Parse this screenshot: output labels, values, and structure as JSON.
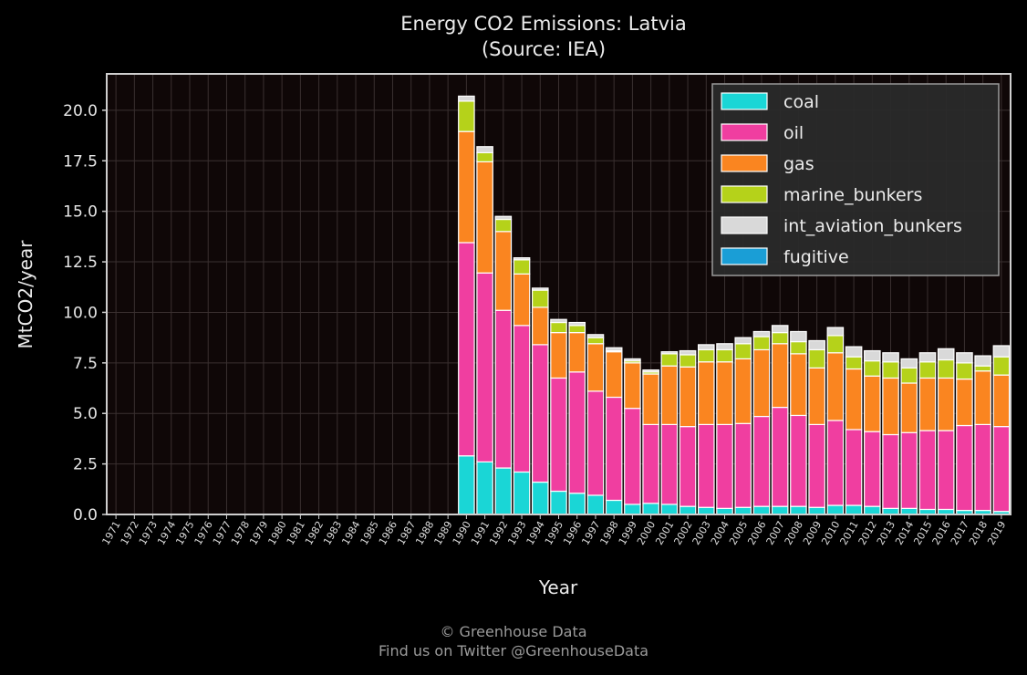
{
  "chart_data": {
    "type": "bar",
    "stacked": true,
    "title": "Energy CO2 Emissions: Latvia",
    "subtitle": "(Source: IEA)",
    "xlabel": "Year",
    "ylabel": "MtCO2/year",
    "ylim": [
      0,
      21.8
    ],
    "yticks": [
      "0.0",
      "2.5",
      "5.0",
      "7.5",
      "10.0",
      "12.5",
      "15.0",
      "17.5",
      "20.0"
    ],
    "grid": true,
    "legend_position": "top-right",
    "categories": [
      "1971",
      "1972",
      "1973",
      "1974",
      "1975",
      "1976",
      "1977",
      "1978",
      "1979",
      "1980",
      "1981",
      "1982",
      "1983",
      "1984",
      "1985",
      "1986",
      "1987",
      "1988",
      "1989",
      "1990",
      "1991",
      "1992",
      "1993",
      "1994",
      "1995",
      "1996",
      "1997",
      "1998",
      "1999",
      "2000",
      "2001",
      "2002",
      "2003",
      "2004",
      "2005",
      "2006",
      "2007",
      "2008",
      "2009",
      "2010",
      "2011",
      "2012",
      "2013",
      "2014",
      "2015",
      "2016",
      "2017",
      "2018",
      "2019"
    ],
    "series": [
      {
        "name": "coal",
        "color": "#1ad6d6",
        "values": [
          0,
          0,
          0,
          0,
          0,
          0,
          0,
          0,
          0,
          0,
          0,
          0,
          0,
          0,
          0,
          0,
          0,
          0,
          0,
          2.9,
          2.6,
          2.3,
          2.1,
          1.6,
          1.15,
          1.05,
          0.95,
          0.7,
          0.5,
          0.55,
          0.5,
          0.4,
          0.35,
          0.3,
          0.35,
          0.4,
          0.4,
          0.4,
          0.35,
          0.45,
          0.45,
          0.4,
          0.3,
          0.3,
          0.25,
          0.25,
          0.2,
          0.2,
          0.15
        ]
      },
      {
        "name": "oil",
        "color": "#f03ea0",
        "values": [
          0,
          0,
          0,
          0,
          0,
          0,
          0,
          0,
          0,
          0,
          0,
          0,
          0,
          0,
          0,
          0,
          0,
          0,
          0,
          10.55,
          9.35,
          7.8,
          7.25,
          6.8,
          5.6,
          6.0,
          5.15,
          5.1,
          4.75,
          3.9,
          3.95,
          3.95,
          4.1,
          4.15,
          4.15,
          4.45,
          4.9,
          4.5,
          4.1,
          4.2,
          3.75,
          3.7,
          3.65,
          3.75,
          3.9,
          3.9,
          4.2,
          4.25,
          4.2
        ]
      },
      {
        "name": "gas",
        "color": "#fa8520",
        "values": [
          0,
          0,
          0,
          0,
          0,
          0,
          0,
          0,
          0,
          0,
          0,
          0,
          0,
          0,
          0,
          0,
          0,
          0,
          0,
          5.5,
          5.5,
          3.9,
          2.55,
          1.85,
          2.25,
          1.95,
          2.35,
          2.25,
          2.25,
          2.5,
          2.9,
          2.95,
          3.1,
          3.1,
          3.2,
          3.3,
          3.15,
          3.05,
          2.8,
          3.35,
          3.0,
          2.75,
          2.8,
          2.45,
          2.6,
          2.6,
          2.3,
          2.65,
          2.55
        ]
      },
      {
        "name": "marine_bunkers",
        "color": "#b5d21a",
        "values": [
          0,
          0,
          0,
          0,
          0,
          0,
          0,
          0,
          0,
          0,
          0,
          0,
          0,
          0,
          0,
          0,
          0,
          0,
          0,
          1.5,
          0.45,
          0.6,
          0.7,
          0.85,
          0.5,
          0.35,
          0.3,
          0.05,
          0.1,
          0.1,
          0.6,
          0.6,
          0.6,
          0.6,
          0.75,
          0.65,
          0.55,
          0.6,
          0.9,
          0.85,
          0.6,
          0.75,
          0.8,
          0.75,
          0.8,
          0.9,
          0.8,
          0.25,
          0.9
        ]
      },
      {
        "name": "int_aviation_bunkers",
        "color": "#d9d9d9",
        "values": [
          0,
          0,
          0,
          0,
          0,
          0,
          0,
          0,
          0,
          0,
          0,
          0,
          0,
          0,
          0,
          0,
          0,
          0,
          0,
          0.25,
          0.3,
          0.15,
          0.1,
          0.1,
          0.15,
          0.15,
          0.15,
          0.15,
          0.1,
          0.1,
          0.1,
          0.2,
          0.25,
          0.3,
          0.3,
          0.25,
          0.35,
          0.5,
          0.45,
          0.4,
          0.5,
          0.5,
          0.45,
          0.45,
          0.45,
          0.55,
          0.5,
          0.5,
          0.55
        ]
      },
      {
        "name": "fugitive",
        "color": "#1a9ed6",
        "values": [
          0,
          0,
          0,
          0,
          0,
          0,
          0,
          0,
          0,
          0,
          0,
          0,
          0,
          0,
          0,
          0,
          0,
          0,
          0,
          0,
          0,
          0,
          0,
          0,
          0,
          0,
          0,
          0,
          0,
          0,
          0,
          0,
          0,
          0,
          0,
          0,
          0,
          0,
          0,
          0,
          0,
          0,
          0,
          0,
          0,
          0,
          0,
          0,
          0
        ]
      }
    ]
  },
  "footer": {
    "line1": "© Greenhouse Data",
    "line2": "Find us on Twitter @GreenhouseData"
  }
}
